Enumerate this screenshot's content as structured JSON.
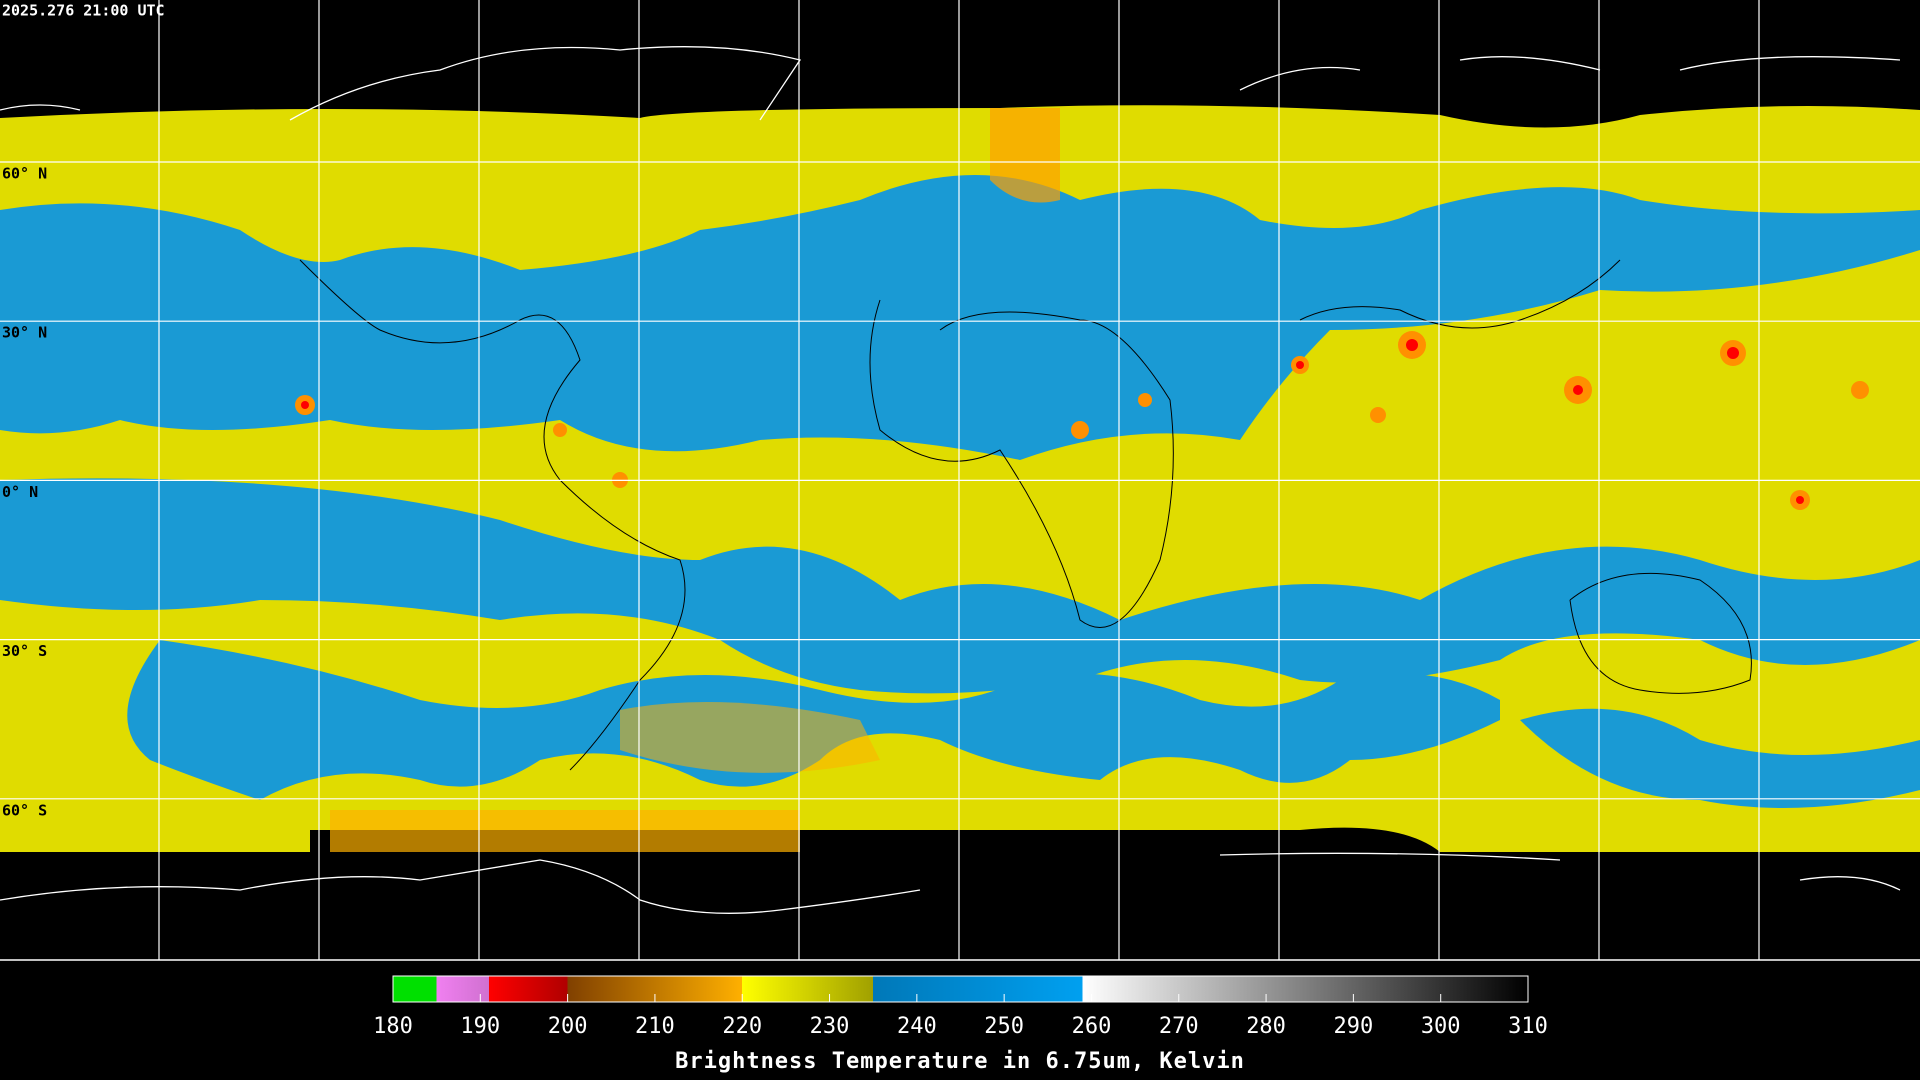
{
  "header": {
    "title": "2025.276 21:00 UTC"
  },
  "latitude_labels": [
    "60° N",
    "30° N",
    "0° N",
    "30° S",
    "60° S"
  ],
  "colorbar": {
    "label": "Brightness Temperature in 6.75um, Kelvin",
    "range": [
      180,
      310
    ],
    "ticks": [
      180,
      190,
      200,
      210,
      220,
      230,
      240,
      250,
      260,
      270,
      280,
      290,
      300,
      310
    ],
    "stops": [
      {
        "value": 180,
        "color": "#00e000"
      },
      {
        "value": 185,
        "color": "#00e000"
      },
      {
        "value": 185,
        "color": "#f080f0"
      },
      {
        "value": 191,
        "color": "#d070d0"
      },
      {
        "value": 191,
        "color": "#ff0000"
      },
      {
        "value": 200,
        "color": "#b00000"
      },
      {
        "value": 200,
        "color": "#804000"
      },
      {
        "value": 220,
        "color": "#ffb000"
      },
      {
        "value": 220,
        "color": "#ffff00"
      },
      {
        "value": 235,
        "color": "#a0a000"
      },
      {
        "value": 235,
        "color": "#0078b8"
      },
      {
        "value": 259,
        "color": "#00a0f0"
      },
      {
        "value": 259,
        "color": "#ffffff"
      },
      {
        "value": 310,
        "color": "#000000"
      }
    ]
  }
}
